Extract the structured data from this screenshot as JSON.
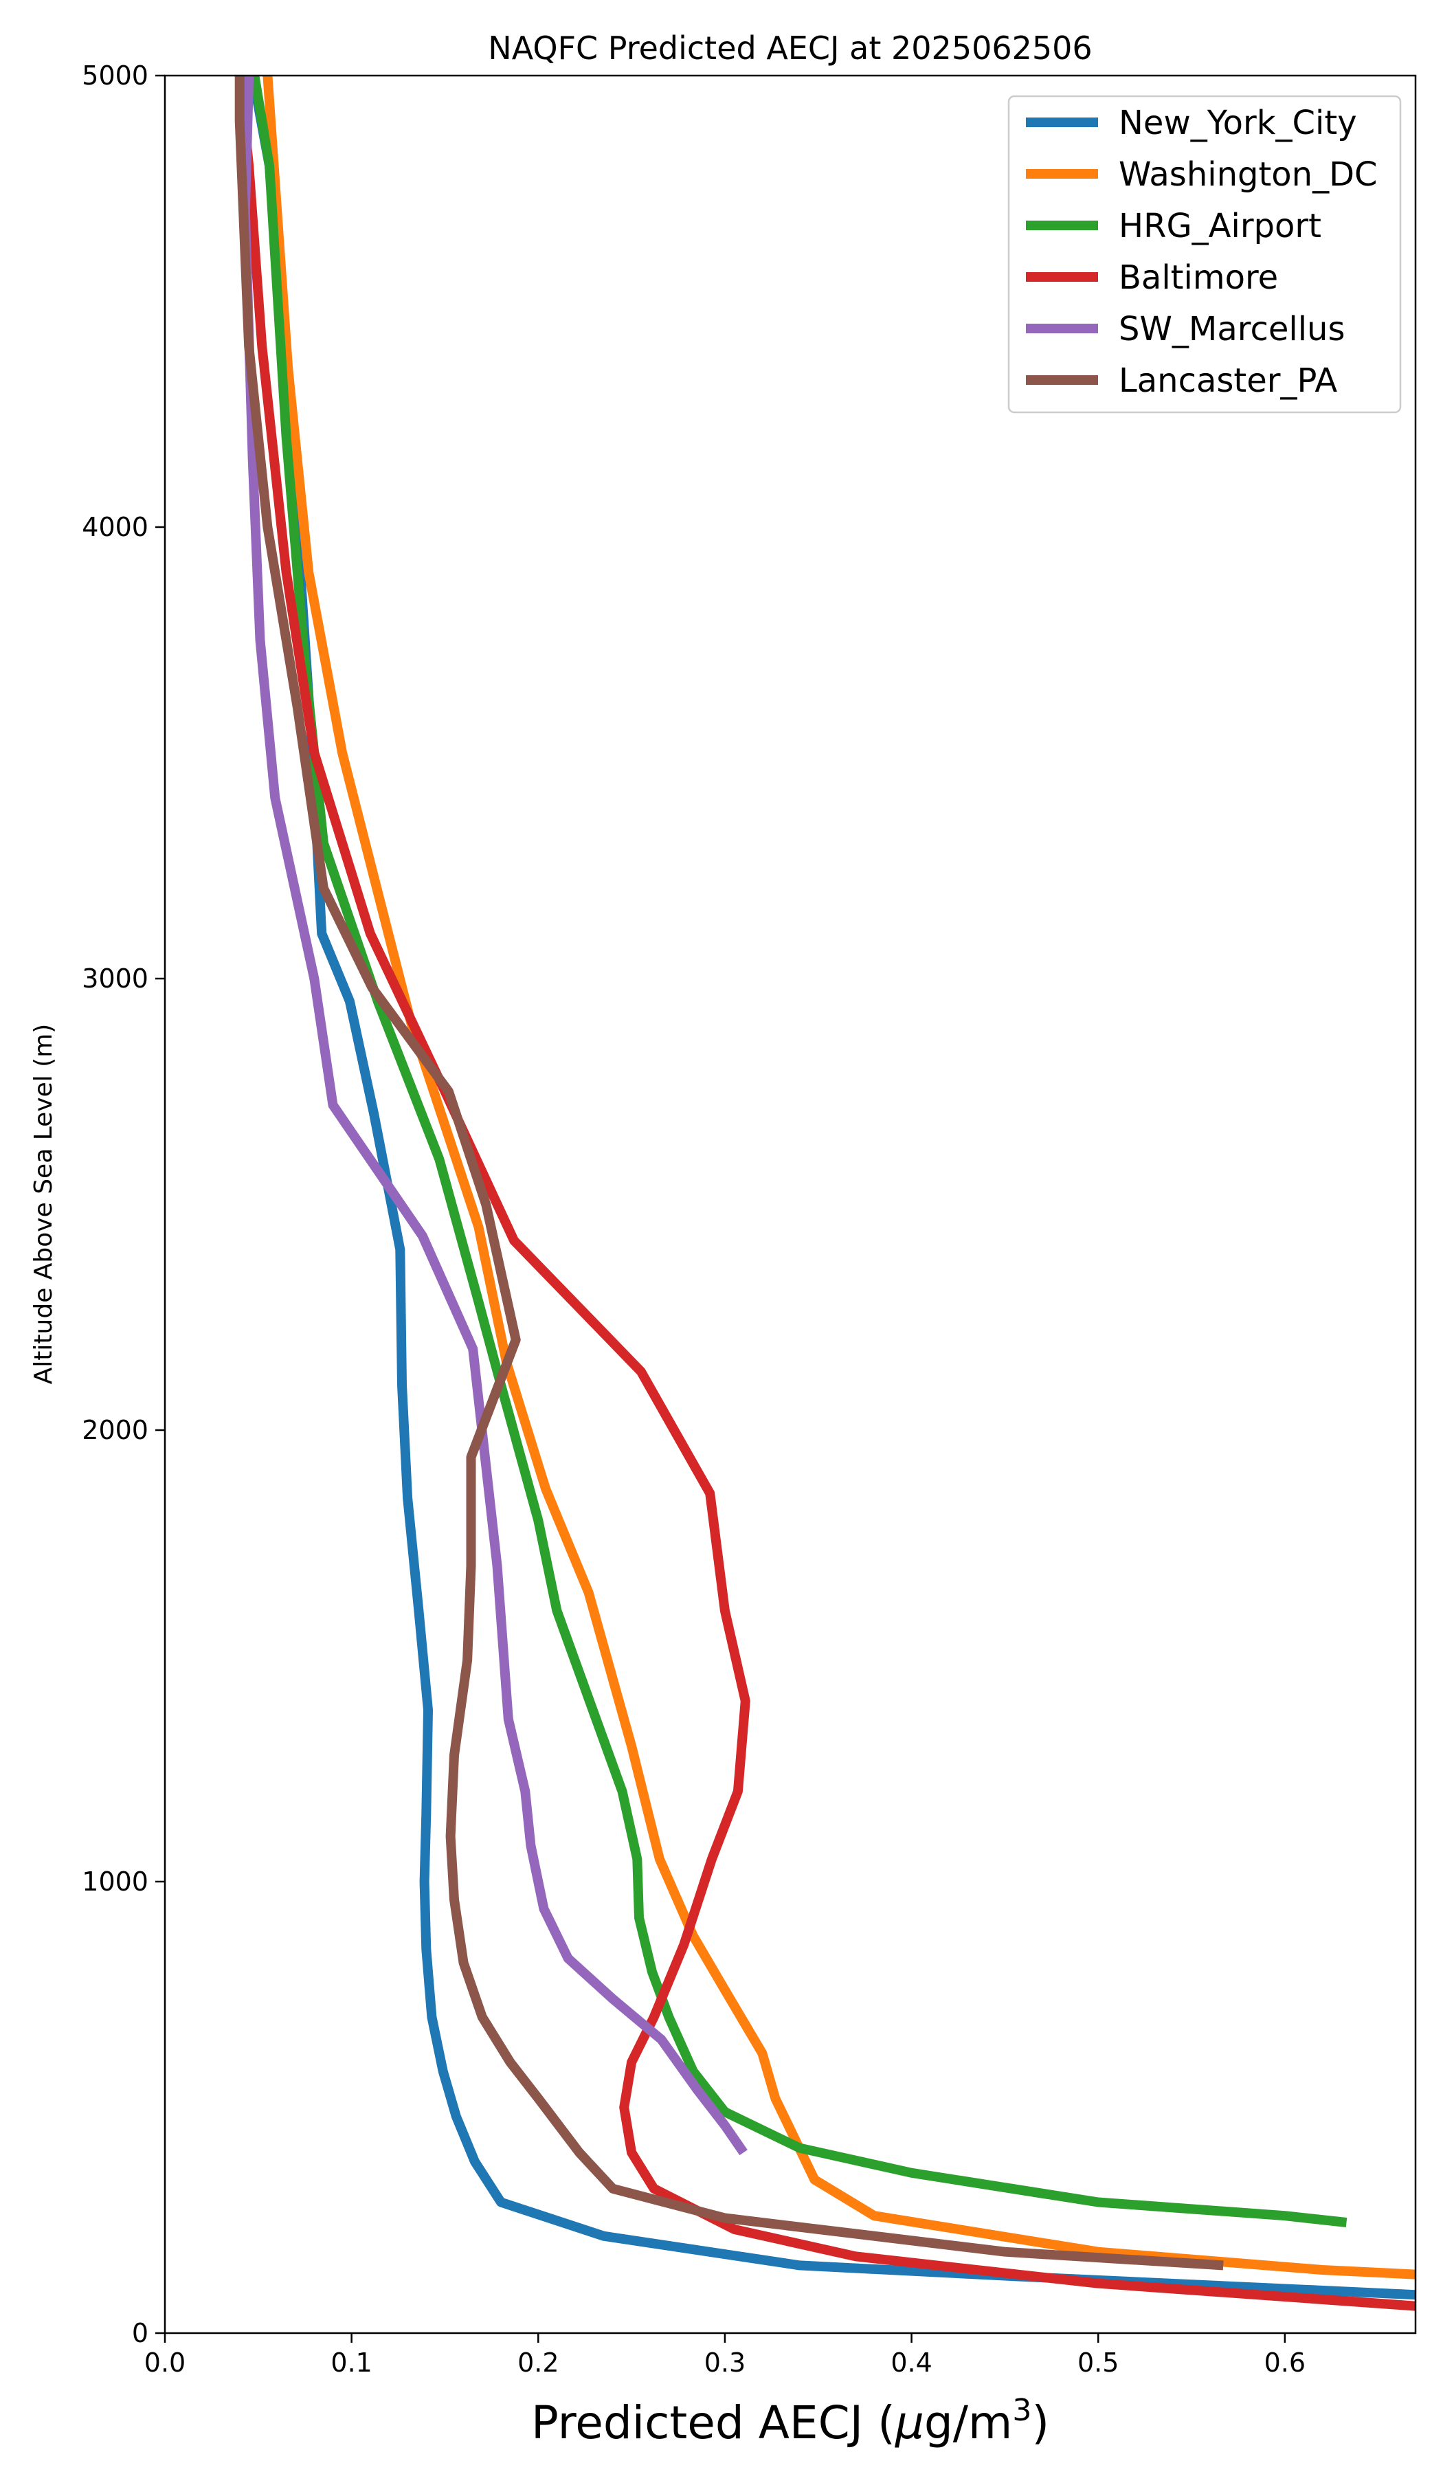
{
  "chart_data": {
    "type": "line",
    "title": "NAQFC Predicted AECJ at 2025062506",
    "xlabel": "Predicted AECJ (μg/m³)",
    "xlabel_main": "Predicted AECJ (",
    "xlabel_mu": "μ",
    "xlabel_unit": "g/m",
    "xlabel_sup": "3",
    "xlabel_close": ")",
    "ylabel": "Altitude Above Sea Level (m)",
    "xlim": [
      0,
      0.67
    ],
    "ylim": [
      0,
      5000
    ],
    "xticks": [
      "0.0",
      "0.1",
      "0.2",
      "0.3",
      "0.4",
      "0.5",
      "0.6"
    ],
    "xtick_values": [
      0.0,
      0.1,
      0.2,
      0.3,
      0.4,
      0.5,
      0.6
    ],
    "yticks": [
      "0",
      "1000",
      "2000",
      "3000",
      "4000",
      "5000"
    ],
    "ytick_values": [
      0,
      1000,
      2000,
      3000,
      4000,
      5000
    ],
    "grid": false,
    "legend_position": "top-right",
    "series": [
      {
        "name": "New_York_City",
        "color": "#1f77b4",
        "points": [
          [
            0.67,
            85
          ],
          [
            0.46,
            125
          ],
          [
            0.34,
            150
          ],
          [
            0.235,
            215
          ],
          [
            0.18,
            290
          ],
          [
            0.166,
            380
          ],
          [
            0.156,
            480
          ],
          [
            0.149,
            580
          ],
          [
            0.143,
            700
          ],
          [
            0.14,
            850
          ],
          [
            0.139,
            1000
          ],
          [
            0.14,
            1150
          ],
          [
            0.141,
            1380
          ],
          [
            0.136,
            1600
          ],
          [
            0.13,
            1850
          ],
          [
            0.127,
            2100
          ],
          [
            0.126,
            2400
          ],
          [
            0.112,
            2700
          ],
          [
            0.099,
            2950
          ],
          [
            0.084,
            3100
          ],
          [
            0.079,
            3500
          ],
          [
            0.071,
            4000
          ],
          [
            0.063,
            4400
          ],
          [
            0.056,
            4800
          ],
          [
            0.047,
            5000
          ]
        ]
      },
      {
        "name": "Washington_DC",
        "color": "#ff7f0e",
        "points": [
          [
            0.67,
            130
          ],
          [
            0.62,
            140
          ],
          [
            0.5,
            180
          ],
          [
            0.38,
            260
          ],
          [
            0.348,
            340
          ],
          [
            0.327,
            520
          ],
          [
            0.32,
            620
          ],
          [
            0.3,
            760
          ],
          [
            0.283,
            880
          ],
          [
            0.265,
            1050
          ],
          [
            0.25,
            1300
          ],
          [
            0.227,
            1640
          ],
          [
            0.204,
            1870
          ],
          [
            0.183,
            2150
          ],
          [
            0.168,
            2450
          ],
          [
            0.132,
            2900
          ],
          [
            0.095,
            3500
          ],
          [
            0.077,
            3900
          ],
          [
            0.066,
            4350
          ],
          [
            0.055,
            5000
          ]
        ]
      },
      {
        "name": "HRG_Airport",
        "color": "#2ca02c",
        "points": [
          [
            0.633,
            245
          ],
          [
            0.6,
            260
          ],
          [
            0.5,
            290
          ],
          [
            0.4,
            355
          ],
          [
            0.34,
            410
          ],
          [
            0.3,
            490
          ],
          [
            0.283,
            580
          ],
          [
            0.27,
            700
          ],
          [
            0.261,
            800
          ],
          [
            0.254,
            920
          ],
          [
            0.253,
            1050
          ],
          [
            0.245,
            1200
          ],
          [
            0.21,
            1600
          ],
          [
            0.2,
            1800
          ],
          [
            0.18,
            2100
          ],
          [
            0.167,
            2300
          ],
          [
            0.147,
            2600
          ],
          [
            0.114,
            2950
          ],
          [
            0.085,
            3300
          ],
          [
            0.075,
            3700
          ],
          [
            0.065,
            4200
          ],
          [
            0.056,
            4800
          ],
          [
            0.048,
            5000
          ]
        ]
      },
      {
        "name": "Baltimore",
        "color": "#d62728",
        "points": [
          [
            0.67,
            60
          ],
          [
            0.5,
            110
          ],
          [
            0.37,
            170
          ],
          [
            0.305,
            230
          ],
          [
            0.262,
            320
          ],
          [
            0.25,
            400
          ],
          [
            0.246,
            500
          ],
          [
            0.25,
            600
          ],
          [
            0.262,
            700
          ],
          [
            0.278,
            860
          ],
          [
            0.293,
            1050
          ],
          [
            0.307,
            1200
          ],
          [
            0.311,
            1400
          ],
          [
            0.3,
            1600
          ],
          [
            0.292,
            1860
          ],
          [
            0.255,
            2130
          ],
          [
            0.187,
            2420
          ],
          [
            0.15,
            2750
          ],
          [
            0.11,
            3100
          ],
          [
            0.08,
            3500
          ],
          [
            0.065,
            3900
          ],
          [
            0.052,
            4400
          ],
          [
            0.045,
            4800
          ],
          [
            0.04,
            5000
          ]
        ]
      },
      {
        "name": "SW_Marcellus",
        "color": "#9467bd",
        "points": [
          [
            0.31,
            400
          ],
          [
            0.3,
            460
          ],
          [
            0.285,
            540
          ],
          [
            0.266,
            650
          ],
          [
            0.24,
            740
          ],
          [
            0.216,
            830
          ],
          [
            0.203,
            940
          ],
          [
            0.196,
            1080
          ],
          [
            0.193,
            1200
          ],
          [
            0.184,
            1360
          ],
          [
            0.178,
            1700
          ],
          [
            0.165,
            2180
          ],
          [
            0.138,
            2430
          ],
          [
            0.09,
            2720
          ],
          [
            0.08,
            3000
          ],
          [
            0.059,
            3400
          ],
          [
            0.051,
            3750
          ],
          [
            0.047,
            4150
          ],
          [
            0.043,
            4700
          ],
          [
            0.045,
            5000
          ]
        ]
      },
      {
        "name": "Lancaster_PA",
        "color": "#8c564b",
        "points": [
          [
            0.567,
            150
          ],
          [
            0.45,
            180
          ],
          [
            0.3,
            255
          ],
          [
            0.24,
            320
          ],
          [
            0.222,
            400
          ],
          [
            0.2,
            520
          ],
          [
            0.185,
            600
          ],
          [
            0.17,
            700
          ],
          [
            0.16,
            820
          ],
          [
            0.155,
            960
          ],
          [
            0.153,
            1100
          ],
          [
            0.155,
            1280
          ],
          [
            0.162,
            1490
          ],
          [
            0.164,
            1700
          ],
          [
            0.164,
            1940
          ],
          [
            0.188,
            2200
          ],
          [
            0.172,
            2500
          ],
          [
            0.152,
            2750
          ],
          [
            0.111,
            2980
          ],
          [
            0.085,
            3200
          ],
          [
            0.071,
            3600
          ],
          [
            0.055,
            4000
          ],
          [
            0.045,
            4400
          ],
          [
            0.04,
            4900
          ],
          [
            0.04,
            5000
          ]
        ]
      }
    ]
  }
}
